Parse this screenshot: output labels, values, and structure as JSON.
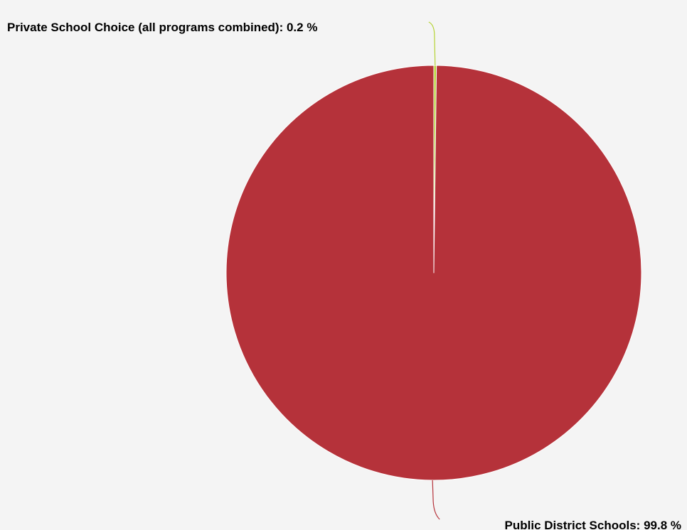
{
  "chart_data": {
    "type": "pie",
    "title": "",
    "slices": [
      {
        "label": "Private School Choice (all programs combined)",
        "value": 0.2,
        "display": "Private School Choice (all programs combined): 0.2 %",
        "color": "#b5d334"
      },
      {
        "label": "Public District Schools",
        "value": 99.8,
        "display": "Public District Schools: 99.8 %",
        "color": "#b5323a"
      }
    ],
    "unit": "%",
    "legend": "none"
  },
  "colors": {
    "background": "#f4f4f4",
    "slice_border": "#ffffff"
  }
}
